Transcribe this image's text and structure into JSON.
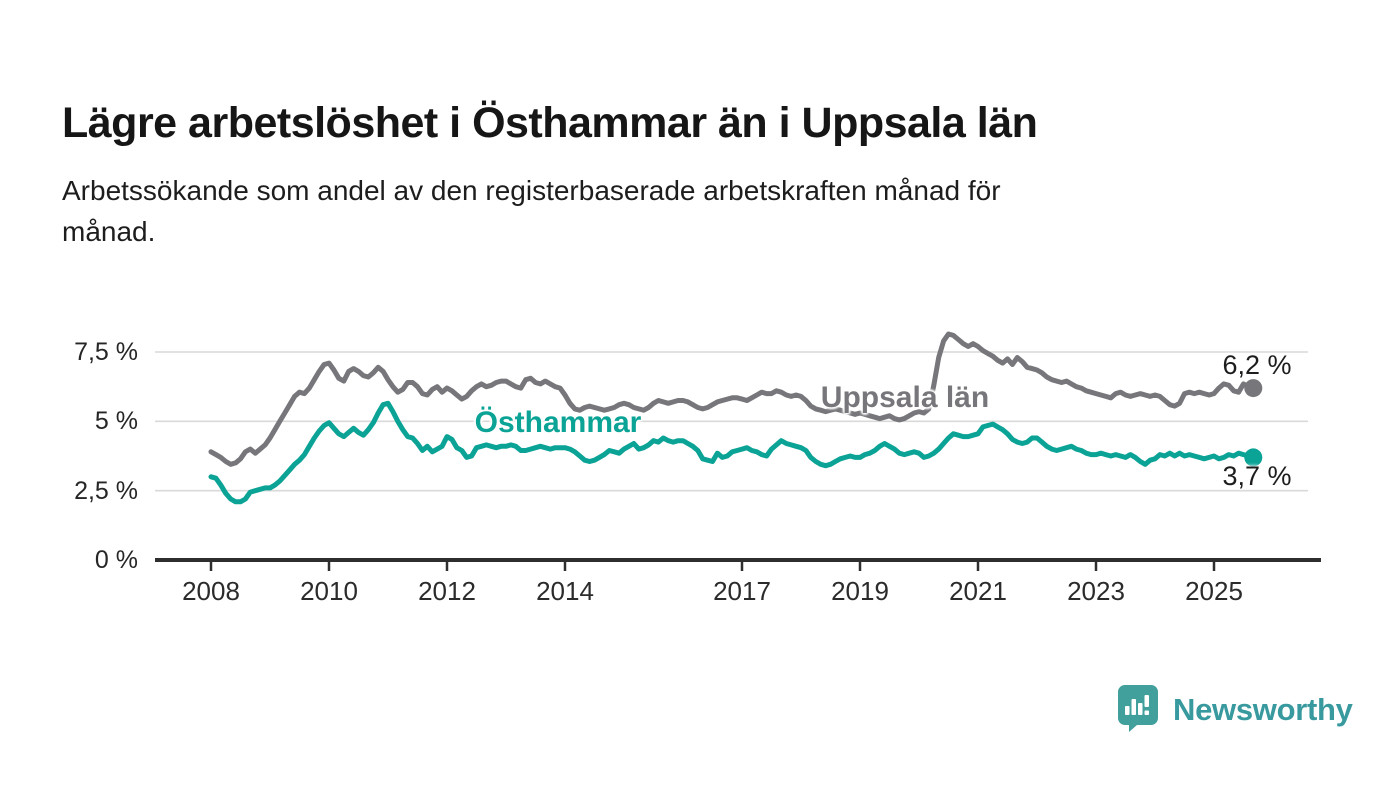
{
  "header": {
    "title": "Lägre arbetslöshet i Östhammar än i Uppsala län",
    "subtitle_line1": "Arbetssökande som andel av den registerbaserade arbetskraften månad för",
    "subtitle_line2": "månad."
  },
  "footer": {
    "logo_text": "Newsworthy",
    "logo_icon": "bar-chart-speech-bubble",
    "logo_color": "#41A09C"
  },
  "chart_data": {
    "type": "line",
    "title": "Lägre arbetslöshet i Östhammar än i Uppsala län",
    "subtitle": "Arbetssökande som andel av den registerbaserade arbetskraften månad för månad.",
    "unit": "%",
    "x_start_year": 2008,
    "x_step_months": 1,
    "x_end": "2025-09",
    "ylim": [
      0,
      8.6
    ],
    "grid": "horizontal",
    "legend_position": "inline-labels",
    "x_ticks": [
      {
        "label": "2008",
        "year": 2008
      },
      {
        "label": "2010",
        "year": 2010
      },
      {
        "label": "2012",
        "year": 2012
      },
      {
        "label": "2014",
        "year": 2014
      },
      {
        "label": "2017",
        "year": 2017
      },
      {
        "label": "2019",
        "year": 2019
      },
      {
        "label": "2021",
        "year": 2021
      },
      {
        "label": "2023",
        "year": 2023
      },
      {
        "label": "2025",
        "year": 2025
      }
    ],
    "y_ticks": [
      {
        "label": "0 %",
        "value": 0
      },
      {
        "label": "2,5 %",
        "value": 2.5
      },
      {
        "label": "5 %",
        "value": 5
      },
      {
        "label": "7,5 %",
        "value": 7.5
      }
    ],
    "axis_color": "#2E2E2E",
    "grid_color": "#D9D9D9",
    "series": [
      {
        "name": "Uppsala län",
        "color": "#76767B",
        "end_label": "6,2 %",
        "end_value": 6.2,
        "values": [
          3.9,
          3.8,
          3.7,
          3.55,
          3.45,
          3.5,
          3.65,
          3.9,
          4.0,
          3.85,
          4.0,
          4.15,
          4.4,
          4.7,
          5.0,
          5.3,
          5.6,
          5.9,
          6.05,
          6.0,
          6.2,
          6.5,
          6.8,
          7.05,
          7.1,
          6.85,
          6.55,
          6.45,
          6.8,
          6.9,
          6.8,
          6.65,
          6.6,
          6.75,
          6.95,
          6.8,
          6.5,
          6.25,
          6.05,
          6.15,
          6.4,
          6.4,
          6.25,
          6.0,
          5.95,
          6.15,
          6.25,
          6.05,
          6.2,
          6.1,
          5.95,
          5.8,
          5.9,
          6.1,
          6.25,
          6.35,
          6.25,
          6.3,
          6.4,
          6.45,
          6.45,
          6.35,
          6.25,
          6.2,
          6.5,
          6.55,
          6.4,
          6.35,
          6.45,
          6.35,
          6.25,
          6.2,
          5.95,
          5.65,
          5.45,
          5.4,
          5.5,
          5.55,
          5.5,
          5.45,
          5.4,
          5.45,
          5.5,
          5.6,
          5.65,
          5.6,
          5.5,
          5.45,
          5.4,
          5.5,
          5.65,
          5.75,
          5.7,
          5.65,
          5.7,
          5.75,
          5.75,
          5.7,
          5.6,
          5.5,
          5.45,
          5.5,
          5.6,
          5.7,
          5.75,
          5.8,
          5.85,
          5.85,
          5.8,
          5.75,
          5.85,
          5.95,
          6.05,
          6.0,
          6.0,
          6.1,
          6.05,
          5.95,
          5.9,
          5.95,
          5.9,
          5.75,
          5.55,
          5.45,
          5.4,
          5.35,
          5.4,
          5.45,
          5.4,
          5.35,
          5.3,
          5.25,
          5.3,
          5.25,
          5.2,
          5.15,
          5.1,
          5.15,
          5.2,
          5.1,
          5.05,
          5.1,
          5.2,
          5.3,
          5.35,
          5.3,
          5.45,
          6.3,
          7.3,
          7.9,
          8.15,
          8.1,
          7.95,
          7.8,
          7.7,
          7.8,
          7.7,
          7.55,
          7.45,
          7.35,
          7.2,
          7.1,
          7.25,
          7.05,
          7.3,
          7.15,
          6.95,
          6.9,
          6.85,
          6.75,
          6.6,
          6.5,
          6.45,
          6.4,
          6.45,
          6.35,
          6.25,
          6.2,
          6.1,
          6.05,
          6.0,
          5.95,
          5.9,
          5.85,
          6.0,
          6.05,
          5.95,
          5.9,
          5.95,
          6.0,
          5.95,
          5.9,
          5.95,
          5.9,
          5.75,
          5.6,
          5.55,
          5.65,
          6.0,
          6.05,
          6.0,
          6.05,
          6.0,
          5.95,
          6.0,
          6.2,
          6.35,
          6.3,
          6.1,
          6.05,
          6.35,
          6.25,
          6.2
        ]
      },
      {
        "name": "Östhammar",
        "color": "#0AA396",
        "end_label": "3,7 %",
        "end_value": 3.7,
        "values": [
          3.0,
          2.95,
          2.7,
          2.4,
          2.2,
          2.1,
          2.1,
          2.2,
          2.45,
          2.5,
          2.55,
          2.6,
          2.6,
          2.7,
          2.85,
          3.05,
          3.25,
          3.45,
          3.6,
          3.8,
          4.1,
          4.4,
          4.65,
          4.85,
          4.95,
          4.75,
          4.55,
          4.45,
          4.6,
          4.75,
          4.6,
          4.5,
          4.7,
          4.95,
          5.3,
          5.6,
          5.65,
          5.35,
          5.0,
          4.7,
          4.45,
          4.4,
          4.2,
          3.95,
          4.1,
          3.9,
          4.0,
          4.1,
          4.45,
          4.35,
          4.05,
          3.95,
          3.7,
          3.75,
          4.05,
          4.1,
          4.15,
          4.1,
          4.05,
          4.1,
          4.1,
          4.15,
          4.1,
          3.95,
          3.95,
          4.0,
          4.05,
          4.1,
          4.05,
          4.0,
          4.05,
          4.05,
          4.05,
          4.0,
          3.9,
          3.75,
          3.6,
          3.55,
          3.6,
          3.7,
          3.8,
          3.95,
          3.9,
          3.85,
          4.0,
          4.1,
          4.2,
          4.0,
          4.05,
          4.15,
          4.3,
          4.25,
          4.4,
          4.3,
          4.25,
          4.3,
          4.3,
          4.2,
          4.1,
          3.95,
          3.65,
          3.6,
          3.55,
          3.85,
          3.7,
          3.75,
          3.9,
          3.95,
          4.0,
          4.05,
          3.95,
          3.9,
          3.8,
          3.75,
          4.0,
          4.15,
          4.3,
          4.2,
          4.15,
          4.1,
          4.05,
          3.95,
          3.7,
          3.55,
          3.45,
          3.4,
          3.45,
          3.55,
          3.65,
          3.7,
          3.75,
          3.7,
          3.7,
          3.8,
          3.85,
          3.95,
          4.1,
          4.2,
          4.1,
          4.0,
          3.85,
          3.8,
          3.85,
          3.9,
          3.85,
          3.7,
          3.75,
          3.85,
          4.0,
          4.2,
          4.4,
          4.55,
          4.5,
          4.45,
          4.45,
          4.5,
          4.55,
          4.8,
          4.85,
          4.9,
          4.8,
          4.7,
          4.55,
          4.35,
          4.25,
          4.2,
          4.25,
          4.4,
          4.4,
          4.25,
          4.1,
          4.0,
          3.95,
          4.0,
          4.05,
          4.1,
          4.0,
          3.95,
          3.85,
          3.8,
          3.8,
          3.85,
          3.8,
          3.75,
          3.8,
          3.75,
          3.7,
          3.8,
          3.7,
          3.55,
          3.45,
          3.6,
          3.65,
          3.8,
          3.75,
          3.85,
          3.75,
          3.85,
          3.75,
          3.8,
          3.75,
          3.7,
          3.65,
          3.7,
          3.75,
          3.65,
          3.7,
          3.8,
          3.75,
          3.85,
          3.8,
          3.75,
          3.7
        ]
      }
    ]
  }
}
